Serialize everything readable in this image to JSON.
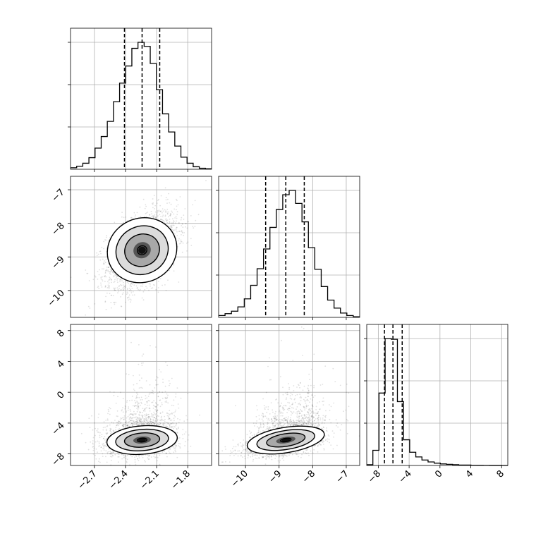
{
  "chart_data": {
    "type": "corner",
    "title": "",
    "parameters": [
      {
        "name": "",
        "ticks": [
          -2.7,
          -2.4,
          -2.1,
          -1.8
        ],
        "tick_labels": [
          "−2.7",
          "−2.4",
          "−2.1",
          "−1.8"
        ],
        "range": [
          -2.93,
          -1.57
        ],
        "quantiles": [
          -2.41,
          -2.24,
          -2.07
        ]
      },
      {
        "name": "",
        "ticks": [
          -10,
          -9,
          -8,
          -7
        ],
        "tick_labels": [
          "−10",
          "−9",
          "−8",
          "−7"
        ],
        "range": [
          -10.8,
          -6.6
        ],
        "quantiles": [
          -9.4,
          -8.8,
          -8.25
        ]
      },
      {
        "name": "",
        "ticks": [
          -8,
          -4,
          0,
          4,
          8
        ],
        "tick_labels": [
          "−8",
          "−4",
          "0",
          "4",
          "8"
        ],
        "range": [
          -9.5,
          8.8
        ],
        "quantiles": [
          -7.2,
          -6.1,
          -4.9
        ]
      }
    ],
    "histograms": [
      {
        "edges": [
          -2.93,
          -1.57
        ],
        "counts": [
          0.3,
          0.6,
          1.2,
          2.3,
          4.2,
          6.5,
          9.5,
          13.4,
          17.1,
          20.5,
          24.0,
          25.2,
          24.4,
          21.0,
          15.8,
          11.0,
          7.4,
          4.6,
          2.4,
          1.2,
          0.5,
          0.2,
          0.1
        ]
      },
      {
        "edges": [
          -10.8,
          -6.6
        ],
        "counts": [
          0.3,
          0.6,
          1.0,
          1.7,
          3.0,
          5.2,
          7.9,
          11.1,
          14.6,
          17.5,
          19.9,
          20.6,
          18.5,
          15.5,
          11.3,
          7.8,
          5.0,
          2.8,
          1.5,
          0.7,
          0.3,
          0.1
        ]
      },
      {
        "edges": [
          -9.5,
          8.8
        ],
        "counts": [
          0.2,
          3.9,
          18.6,
          32.6,
          32.4,
          16.4,
          6.6,
          3.4,
          2.2,
          1.4,
          0.9,
          0.6,
          0.4,
          0.3,
          0.2,
          0.1,
          0.1,
          0.05,
          0.03,
          0.02,
          0.01,
          0.01,
          0.0
        ]
      }
    ],
    "joint_2d": [
      {
        "x_param": 0,
        "y_param": 1,
        "mean": [
          -2.24,
          -8.8
        ],
        "sd": [
          0.17,
          0.58
        ],
        "rho": 0.45,
        "contour_levels": [
          0.5,
          1.0,
          1.5,
          2.0
        ]
      },
      {
        "x_param": 0,
        "y_param": 2,
        "mean": [
          -2.24,
          -6.2
        ],
        "sd": [
          0.17,
          1.0
        ],
        "rho": 0.2,
        "contour_levels": [
          0.5,
          1.0,
          1.5,
          2.0
        ]
      },
      {
        "x_param": 1,
        "y_param": 2,
        "mean": [
          -8.8,
          -6.2
        ],
        "sd": [
          0.58,
          1.0
        ],
        "rho": 0.45,
        "contour_levels": [
          0.5,
          1.0,
          1.5,
          2.0
        ]
      }
    ],
    "grid": true,
    "legend": "none"
  }
}
